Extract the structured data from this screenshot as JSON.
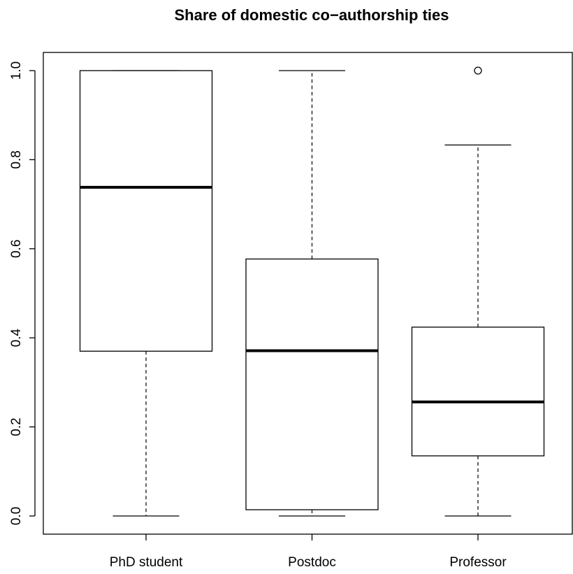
{
  "chart_data": {
    "type": "boxplot",
    "title": "Share of domestic co−authorship ties",
    "xlabel": "",
    "ylabel": "",
    "ylim": [
      0,
      1
    ],
    "y_ticks": [
      "0.0",
      "0.2",
      "0.4",
      "0.6",
      "0.8",
      "1.0"
    ],
    "categories": [
      "PhD student",
      "Postdoc",
      "Professor"
    ],
    "boxes": [
      {
        "category": "PhD student",
        "whisker_low": 0.0,
        "q1": 0.37,
        "median": 0.738,
        "q3": 1.0,
        "whisker_high": 1.0,
        "outliers": []
      },
      {
        "category": "Postdoc",
        "whisker_low": 0.0,
        "q1": 0.014,
        "median": 0.371,
        "q3": 0.577,
        "whisker_high": 1.0,
        "outliers": []
      },
      {
        "category": "Professor",
        "whisker_low": 0.0,
        "q1": 0.135,
        "median": 0.256,
        "q3": 0.424,
        "whisker_high": 0.833,
        "outliers": [
          1.0
        ]
      }
    ],
    "grid": false,
    "legend": "none"
  }
}
